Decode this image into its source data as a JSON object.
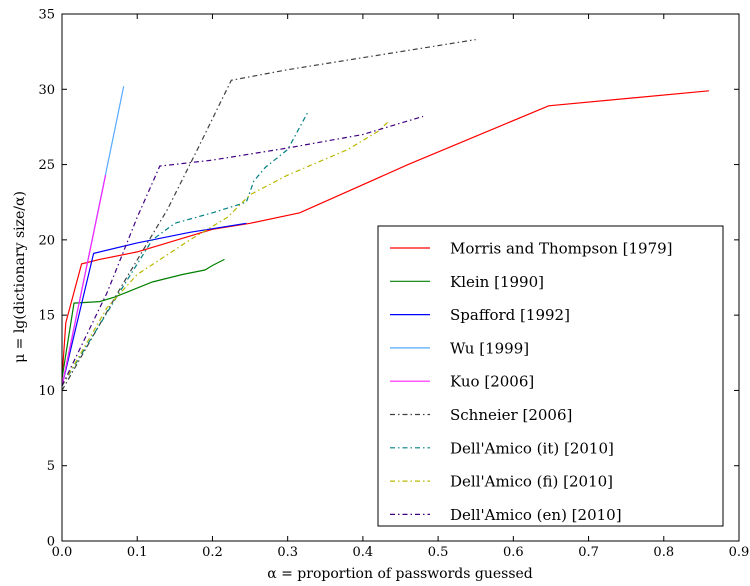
{
  "chart_data": {
    "type": "line",
    "title": "",
    "xlabel": "α = proportion of passwords guessed",
    "ylabel": "μ = lg(dictionary size/α)",
    "xlim": [
      0,
      0.9
    ],
    "ylim": [
      0,
      35
    ],
    "xticks": [
      0.0,
      0.1,
      0.2,
      0.3,
      0.4,
      0.5,
      0.6,
      0.7,
      0.8,
      0.9
    ],
    "xtick_labels": [
      "0.0",
      "0.1",
      "0.2",
      "0.3",
      "0.4",
      "0.5",
      "0.6",
      "0.7",
      "0.8",
      "0.9"
    ],
    "yticks": [
      0,
      5,
      10,
      15,
      20,
      25,
      30,
      35
    ],
    "ytick_labels": [
      "0",
      "5",
      "10",
      "15",
      "20",
      "25",
      "30",
      "35"
    ],
    "grid": false,
    "legend_position": "lower-right",
    "series": [
      {
        "name": "Morris and Thompson [1979]",
        "color": "#ff0000",
        "style": "solid",
        "points": [
          [
            0.0,
            10.8
          ],
          [
            0.005,
            14.5
          ],
          [
            0.026,
            18.4
          ],
          [
            0.05,
            18.7
          ],
          [
            0.1,
            19.2
          ],
          [
            0.2,
            20.7
          ],
          [
            0.25,
            21.1
          ],
          [
            0.316,
            21.8
          ],
          [
            0.46,
            25.0
          ],
          [
            0.647,
            28.9
          ],
          [
            0.86,
            29.9
          ]
        ]
      },
      {
        "name": "Klein [1990]",
        "color": "#008000",
        "style": "solid",
        "points": [
          [
            0.0,
            10.8
          ],
          [
            0.016,
            15.8
          ],
          [
            0.05,
            15.9
          ],
          [
            0.07,
            16.2
          ],
          [
            0.09,
            16.6
          ],
          [
            0.12,
            17.2
          ],
          [
            0.16,
            17.7
          ],
          [
            0.19,
            18.0
          ],
          [
            0.2,
            18.3
          ],
          [
            0.216,
            18.7
          ]
        ]
      },
      {
        "name": "Spafford [1992]",
        "color": "#0000ff",
        "style": "solid",
        "points": [
          [
            0.0,
            10.3
          ],
          [
            0.042,
            19.1
          ],
          [
            0.1,
            19.8
          ],
          [
            0.17,
            20.5
          ],
          [
            0.245,
            21.1
          ]
        ]
      },
      {
        "name": "Wu [1999]",
        "color": "#55aaff",
        "style": "solid",
        "points": [
          [
            0.0,
            10.3
          ],
          [
            0.082,
            30.2
          ]
        ]
      },
      {
        "name": "Kuo [2006]",
        "color": "#ff22ff",
        "style": "solid",
        "points": [
          [
            0.0,
            10.3
          ],
          [
            0.058,
            24.3
          ]
        ]
      },
      {
        "name": "Schneier [2006]",
        "color": "#404040",
        "style": "dashdot",
        "points": [
          [
            0.0,
            10.0
          ],
          [
            0.08,
            17.0
          ],
          [
            0.14,
            22.0
          ],
          [
            0.18,
            26.0
          ],
          [
            0.225,
            30.6
          ],
          [
            0.3,
            31.3
          ],
          [
            0.55,
            33.3
          ]
        ]
      },
      {
        "name": "Dell'Amico (it) [2010]",
        "color": "#008080",
        "style": "dashdot",
        "points": [
          [
            0.0,
            10.3
          ],
          [
            0.08,
            16.8
          ],
          [
            0.12,
            20.0
          ],
          [
            0.15,
            21.1
          ],
          [
            0.2,
            21.8
          ],
          [
            0.245,
            22.5
          ],
          [
            0.255,
            23.9
          ],
          [
            0.27,
            24.8
          ],
          [
            0.3,
            26.0
          ],
          [
            0.327,
            28.5
          ]
        ]
      },
      {
        "name": "Dell'Amico (fi) [2010]",
        "color": "#b8b800",
        "style": "dashdot",
        "points": [
          [
            0.0,
            10.3
          ],
          [
            0.06,
            15.5
          ],
          [
            0.1,
            17.7
          ],
          [
            0.17,
            20.0
          ],
          [
            0.22,
            21.5
          ],
          [
            0.25,
            23.0
          ],
          [
            0.3,
            24.3
          ],
          [
            0.38,
            26.0
          ],
          [
            0.42,
            27.2
          ],
          [
            0.435,
            27.9
          ]
        ]
      },
      {
        "name": "Dell'Amico (en) [2010]",
        "color": "#400080",
        "style": "dashdot",
        "points": [
          [
            0.0,
            10.3
          ],
          [
            0.06,
            16.5
          ],
          [
            0.1,
            21.5
          ],
          [
            0.13,
            24.9
          ],
          [
            0.2,
            25.3
          ],
          [
            0.3,
            26.1
          ],
          [
            0.4,
            27.0
          ],
          [
            0.44,
            27.6
          ],
          [
            0.48,
            28.2
          ]
        ]
      }
    ]
  }
}
